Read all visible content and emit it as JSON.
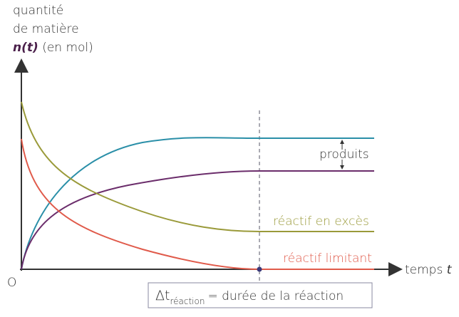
{
  "axes": {
    "y_label": [
      "quantité",
      "de matière"
    ],
    "y_symbol": "n(t)",
    "y_unit": "(en mol)",
    "x_label": "temps",
    "x_symbol": "t",
    "origin": "O"
  },
  "curves": {
    "products": "produits",
    "excess": "réactif en excès",
    "limiting": "réactif limitant"
  },
  "duration": {
    "symbol": "Δt",
    "subscript": "réaction",
    "text": "= durée de la réaction"
  }
}
